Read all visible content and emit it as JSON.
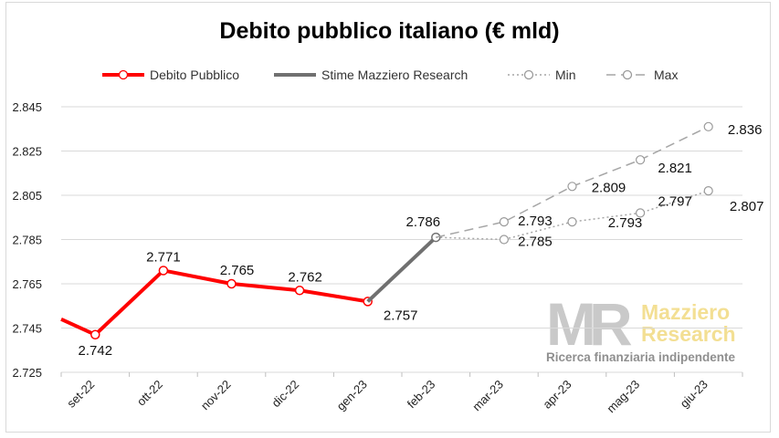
{
  "chart_data": {
    "type": "line",
    "title": "Debito pubblico italiano (€ mld)",
    "categories": [
      "set-22",
      "ott-22",
      "nov-22",
      "dic-22",
      "gen-23",
      "feb-23",
      "mar-23",
      "apr-23",
      "mag-23",
      "giu-23"
    ],
    "ylim": [
      2725,
      2845
    ],
    "yticks": [
      "2.725",
      "2.745",
      "2.765",
      "2.785",
      "2.805",
      "2.825",
      "2.845"
    ],
    "ytick_values": [
      2725,
      2745,
      2765,
      2785,
      2805,
      2825,
      2845
    ],
    "grid": true,
    "legend_position": "top",
    "series": [
      {
        "name": "Debito Pubblico",
        "color": "#ff0000",
        "style": "solid-marker",
        "values": [
          2742,
          2771,
          2765,
          2762,
          2757,
          null,
          null,
          null,
          null,
          null
        ],
        "labels": [
          "2.742",
          "2.771",
          "2.765",
          "2.762",
          "2.757",
          null,
          null,
          null,
          null,
          null
        ]
      },
      {
        "name": "Stime Mazziero Research",
        "color": "#666666",
        "style": "solid",
        "values": [
          null,
          null,
          null,
          null,
          2757,
          2786,
          null,
          null,
          null,
          null
        ],
        "labels": [
          null,
          null,
          null,
          null,
          null,
          "2.786",
          null,
          null,
          null,
          null
        ]
      },
      {
        "name": "Min",
        "color": "#a6a6a6",
        "style": "dotted-marker",
        "values": [
          null,
          null,
          null,
          null,
          null,
          2786,
          2785,
          2793,
          2797,
          2807
        ],
        "labels": [
          null,
          null,
          null,
          null,
          null,
          null,
          "2.785",
          "2.793",
          "2.797",
          "2.807"
        ]
      },
      {
        "name": "Max",
        "color": "#a6a6a6",
        "style": "dashed-marker",
        "values": [
          null,
          null,
          null,
          null,
          null,
          2786,
          2793,
          2809,
          2821,
          2836
        ],
        "labels": [
          null,
          null,
          null,
          null,
          null,
          null,
          "2.793",
          "2.809",
          "2.821",
          "2.836"
        ]
      }
    ]
  },
  "watermark": {
    "logo": "MR",
    "name_line1": "Mazziero",
    "name_line2": "Research",
    "tagline": "Ricerca finanziaria indipendente"
  }
}
